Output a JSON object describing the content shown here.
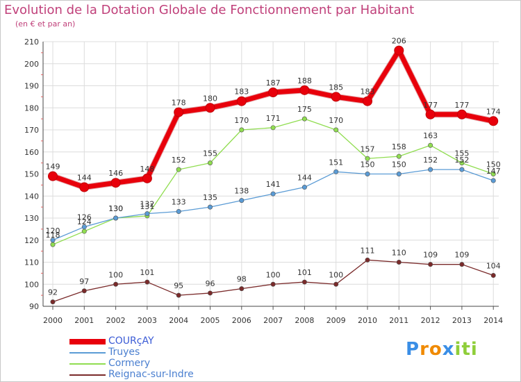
{
  "chart_data": {
    "type": "line",
    "title": "Evolution de la Dotation Globale de Fonctionnement par Habitant",
    "subtitle": "(en € et par an)",
    "x": [
      "2000",
      "2001",
      "2002",
      "2003",
      "2004",
      "2005",
      "2006",
      "2007",
      "2008",
      "2009",
      "2010",
      "2011",
      "2012",
      "2013",
      "2014"
    ],
    "ylim": [
      90,
      210
    ],
    "yticks": [
      90,
      100,
      110,
      120,
      130,
      140,
      150,
      160,
      170,
      180,
      190,
      200,
      210
    ],
    "grid": true,
    "legend_position": "bottom-left",
    "series": [
      {
        "name": "COURçAY",
        "color": "#e8000b",
        "values": [
          149,
          144,
          146,
          148,
          178,
          180,
          183,
          187,
          188,
          185,
          183,
          206,
          177,
          177,
          174
        ]
      },
      {
        "name": "Truyes",
        "color": "#5a9bd5",
        "values": [
          120,
          126,
          130,
          132,
          133,
          135,
          138,
          141,
          144,
          151,
          150,
          150,
          152,
          152,
          147
        ]
      },
      {
        "name": "Cormery",
        "color": "#90dd50",
        "values": [
          118,
          124,
          130,
          131,
          152,
          155,
          170,
          171,
          175,
          170,
          157,
          158,
          163,
          155,
          150
        ]
      },
      {
        "name": "Reignac-sur-Indre",
        "color": "#7a2a2a",
        "values": [
          92,
          97,
          100,
          101,
          95,
          96,
          98,
          100,
          101,
          100,
          111,
          110,
          109,
          109,
          104
        ]
      }
    ]
  },
  "logo": {
    "letters": [
      "P",
      "r",
      "o",
      "x",
      "i",
      "t",
      "i"
    ],
    "colors": [
      "#3a8ee6",
      "#f08a00",
      "#f08a00",
      "#3a8ee6",
      "#8fce3a",
      "#8fce3a",
      "#8fce3a"
    ]
  }
}
